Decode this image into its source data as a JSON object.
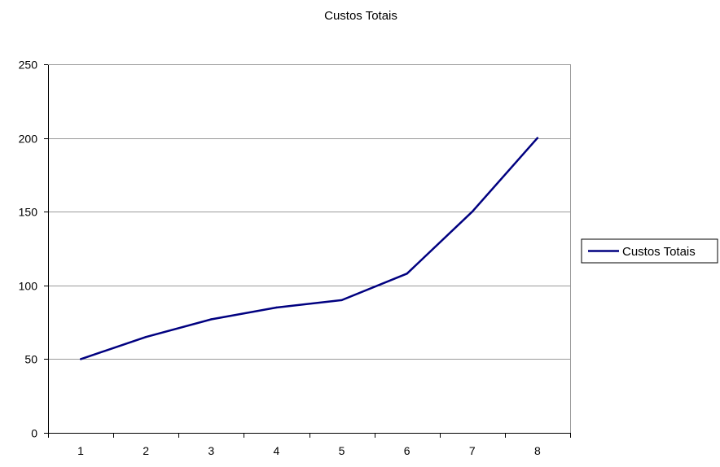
{
  "chart_data": {
    "type": "line",
    "title": "Custos Totais",
    "xlabel": "",
    "ylabel": "",
    "categories": [
      "1",
      "2",
      "3",
      "4",
      "5",
      "6",
      "7",
      "8"
    ],
    "series": [
      {
        "name": "Custos Totais",
        "values": [
          50,
          65,
          77,
          85,
          90,
          108,
          150,
          200
        ],
        "color": "#000080"
      }
    ],
    "ylim": [
      0,
      250
    ],
    "yticks": [
      0,
      50,
      100,
      150,
      200,
      250
    ],
    "grid": true,
    "legend": "right"
  }
}
